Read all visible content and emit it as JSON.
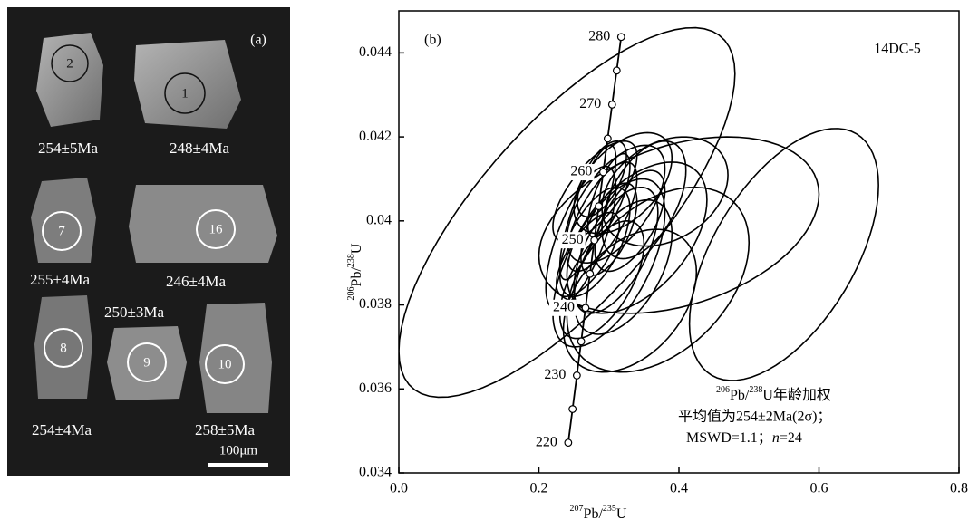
{
  "panel_a": {
    "label": "(a)",
    "scale_bar": "100μm",
    "grains": [
      {
        "spot": "2",
        "age": "254±5Ma"
      },
      {
        "spot": "1",
        "age": "248±4Ma"
      },
      {
        "spot": "7",
        "age": "255±4Ma"
      },
      {
        "spot": "16",
        "age": "246±4Ma"
      },
      {
        "spot": "8",
        "age": "254±4Ma"
      },
      {
        "spot": "9",
        "age": "250±3Ma"
      },
      {
        "spot": "10",
        "age": "258±5Ma"
      }
    ]
  },
  "chart_data": {
    "type": "concordia",
    "panel_label": "(b)",
    "sample": "14DC-5",
    "xlabel": [
      "207",
      "Pb/",
      "235",
      "U"
    ],
    "ylabel": [
      "206",
      "Pb/",
      "238",
      "U"
    ],
    "xlim": [
      0,
      0.8
    ],
    "ylim": [
      0.034,
      0.045
    ],
    "xticks": [
      {
        "value": 0,
        "label": "0.0"
      },
      0.2,
      0.4,
      0.6,
      0.8
    ],
    "yticks": [
      0.034,
      0.036,
      0.038,
      0.04,
      0.042,
      0.044
    ],
    "concordia": {
      "ages": [
        220,
        225,
        230,
        235,
        240,
        245,
        250,
        255,
        260,
        265,
        270,
        275,
        280
      ],
      "x": [
        0.2419,
        0.2481,
        0.2542,
        0.2604,
        0.2666,
        0.2729,
        0.2792,
        0.2855,
        0.2918,
        0.2982,
        0.3046,
        0.3111,
        0.3175
      ],
      "y": [
        0.03472,
        0.03552,
        0.03632,
        0.03713,
        0.03793,
        0.03874,
        0.03954,
        0.04035,
        0.04116,
        0.04196,
        0.04277,
        0.04358,
        0.04438
      ],
      "age_labels": [
        220,
        230,
        240,
        250,
        260,
        270,
        280
      ]
    },
    "ellipses": {
      "x": [
        0.24,
        0.4,
        0.55,
        0.37,
        0.33,
        0.3,
        0.34,
        0.31,
        0.28,
        0.29,
        0.3,
        0.28,
        0.32,
        0.35,
        0.27,
        0.29,
        0.3,
        0.31,
        0.26,
        0.33,
        0.38,
        0.29,
        0.27,
        0.32
      ],
      "y": [
        0.0402,
        0.0399,
        0.0392,
        0.0386,
        0.0381,
        0.039,
        0.0396,
        0.0404,
        0.0407,
        0.0401,
        0.0398,
        0.0395,
        0.0409,
        0.0405,
        0.0402,
        0.041,
        0.0406,
        0.0393,
        0.0396,
        0.04,
        0.0407,
        0.0386,
        0.0392,
        0.0389
      ],
      "x_err": [
        0.24,
        0.2,
        0.135,
        0.13,
        0.095,
        0.08,
        0.1,
        0.07,
        0.06,
        0.05,
        0.04,
        0.05,
        0.07,
        0.06,
        0.04,
        0.035,
        0.03,
        0.06,
        0.05,
        0.05,
        0.09,
        0.06,
        0.045,
        0.07
      ],
      "y_err": [
        0.0044,
        0.0021,
        0.003,
        0.0022,
        0.0017,
        0.002,
        0.0018,
        0.0014,
        0.0012,
        0.0013,
        0.0011,
        0.0013,
        0.0012,
        0.0014,
        0.0016,
        0.0009,
        0.001,
        0.0015,
        0.0017,
        0.0012,
        0.0013,
        0.0014,
        0.001,
        0.0016
      ],
      "rho": [
        0.75,
        0.35,
        0.55,
        0.4,
        0.4,
        0.6,
        0.5,
        0.6,
        0.7,
        0.7,
        0.6,
        0.6,
        0.5,
        0.5,
        0.8,
        0.6,
        0.7,
        0.6,
        0.7,
        0.6,
        0.3,
        0.6,
        0.7,
        0.5
      ]
    },
    "annotation": [
      [
        "206",
        "Pb/",
        "238",
        "U年龄加权"
      ],
      "平均值为254±2Ma(2σ)；",
      [
        "MSWD=1.1；",
        "n",
        "=24"
      ]
    ]
  }
}
